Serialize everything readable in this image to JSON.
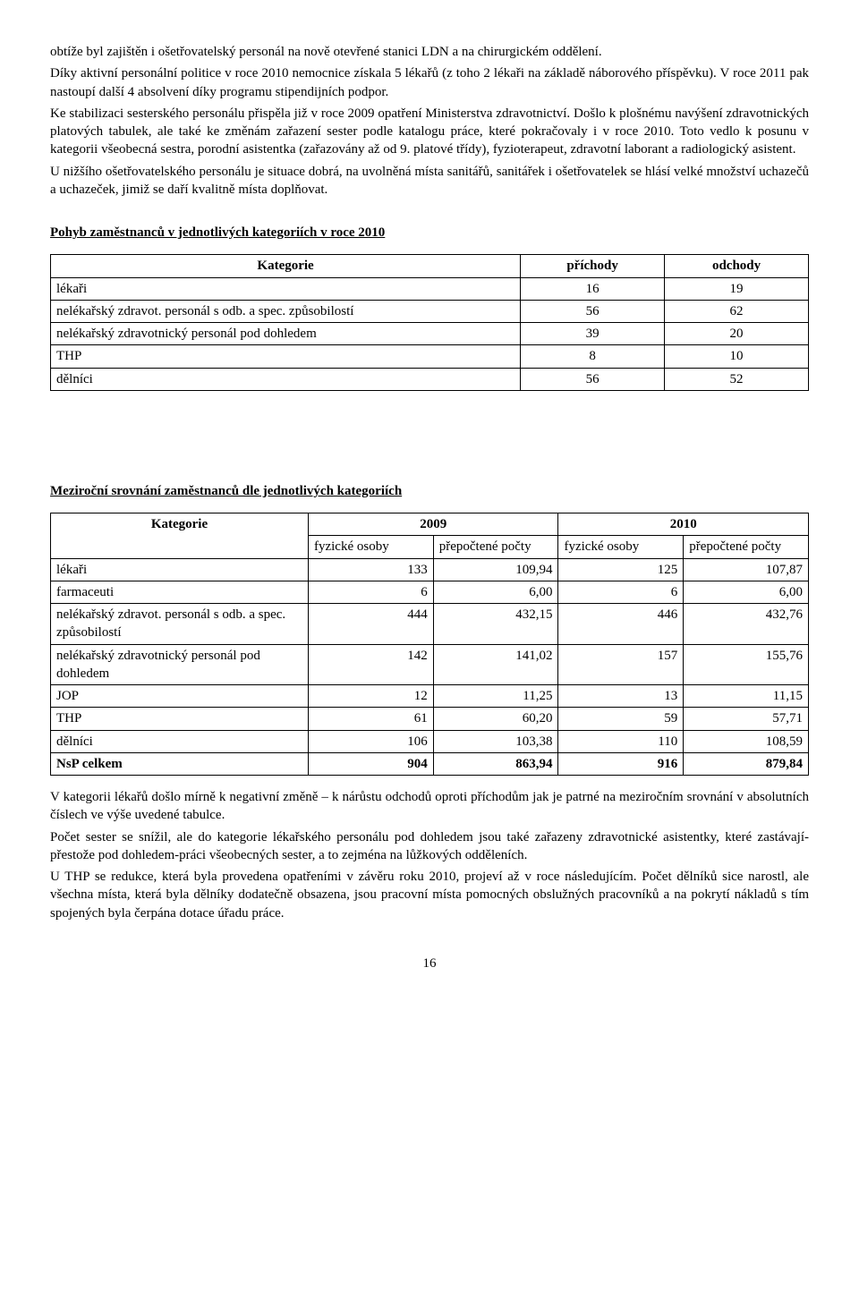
{
  "intro": {
    "p1": "obtíže byl zajištěn i ošetřovatelský personál na nově otevřené stanici LDN a na chirurgickém oddělení.",
    "p2": "Díky aktivní personální politice v roce 2010 nemocnice získala 5 lékařů (z toho 2 lékaři na základě náborového příspěvku). V roce 2011 pak nastoupí další 4 absolvení díky programu stipendijních podpor.",
    "p3": "Ke stabilizaci sesterského personálu přispěla již v roce 2009 opatření Ministerstva zdravotnictví. Došlo k plošnému navýšení zdravotnických platových tabulek, ale také ke změnám zařazení sester podle katalogu práce, které pokračovaly i v roce 2010. Toto vedlo k posunu v kategorii všeobecná sestra, porodní asistentka (zařazovány až od 9. platové třídy), fyzioterapeut, zdravotní laborant a radiologický asistent.",
    "p4": "U nižšího ošetřovatelského personálu je situace dobrá, na uvolněná místa sanitářů, sanitářek i ošetřovatelek se hlásí velké množství uchazečů a uchazeček, jimiž se daří kvalitně místa doplňovat."
  },
  "table1": {
    "heading": "Pohyb zaměstnanců v jednotlivých kategoriích v roce 2010",
    "columns": [
      "Kategorie",
      "příchody",
      "odchody"
    ],
    "rows": [
      [
        "lékaři",
        "16",
        "19"
      ],
      [
        "nelékařský zdravot. personál s odb. a spec. způsobilostí",
        "56",
        "62"
      ],
      [
        "nelékařský zdravotnický personál pod dohledem",
        "39",
        "20"
      ],
      [
        "THP",
        "8",
        "10"
      ],
      [
        "dělníci",
        "56",
        "52"
      ]
    ]
  },
  "table2": {
    "heading": "Meziroční srovnání zaměstnanců dle jednotlivých kategoriích",
    "col_header_main": [
      "Kategorie",
      "2009",
      "2010"
    ],
    "col_header_sub": [
      "fyzické osoby",
      "přepočtené počty",
      "fyzické osoby",
      "přepočtené počty"
    ],
    "rows": [
      [
        "lékaři",
        "133",
        "109,94",
        "125",
        "107,87"
      ],
      [
        "farmaceuti",
        "6",
        "6,00",
        "6",
        "6,00"
      ],
      [
        "nelékařský zdravot. personál s odb. a spec. způsobilostí",
        "444",
        "432,15",
        "446",
        "432,76"
      ],
      [
        "nelékařský zdravotnický personál pod dohledem",
        "142",
        "141,02",
        "157",
        "155,76"
      ],
      [
        "JOP",
        "12",
        "11,25",
        "13",
        "11,15"
      ],
      [
        "THP",
        "61",
        "60,20",
        "59",
        "57,71"
      ],
      [
        "dělníci",
        "106",
        "103,38",
        "110",
        "108,59"
      ],
      [
        "NsP celkem",
        "904",
        "863,94",
        "916",
        "879,84"
      ]
    ],
    "bold_last_row": true
  },
  "outro": {
    "p1": "V kategorii lékařů došlo mírně k negativní změně – k nárůstu odchodů oproti příchodům jak je patrné na meziročním srovnání v absolutních číslech ve výše uvedené tabulce.",
    "p2": "Počet sester se snížil, ale do kategorie lékařského personálu pod dohledem jsou také zařazeny zdravotnické asistentky, které zastávají-přestože pod dohledem-práci všeobecných sester, a to zejména na lůžkových odděleních.",
    "p3": "U THP se redukce, která byla provedena opatřeními v závěru roku 2010, projeví až v roce následujícím. Počet dělníků sice narostl, ale všechna místa, která byla dělníky dodatečně obsazena, jsou pracovní místa pomocných obslužných pracovníků a na pokrytí nákladů s tím spojených byla čerpána dotace úřadu práce."
  },
  "page_number": "16"
}
